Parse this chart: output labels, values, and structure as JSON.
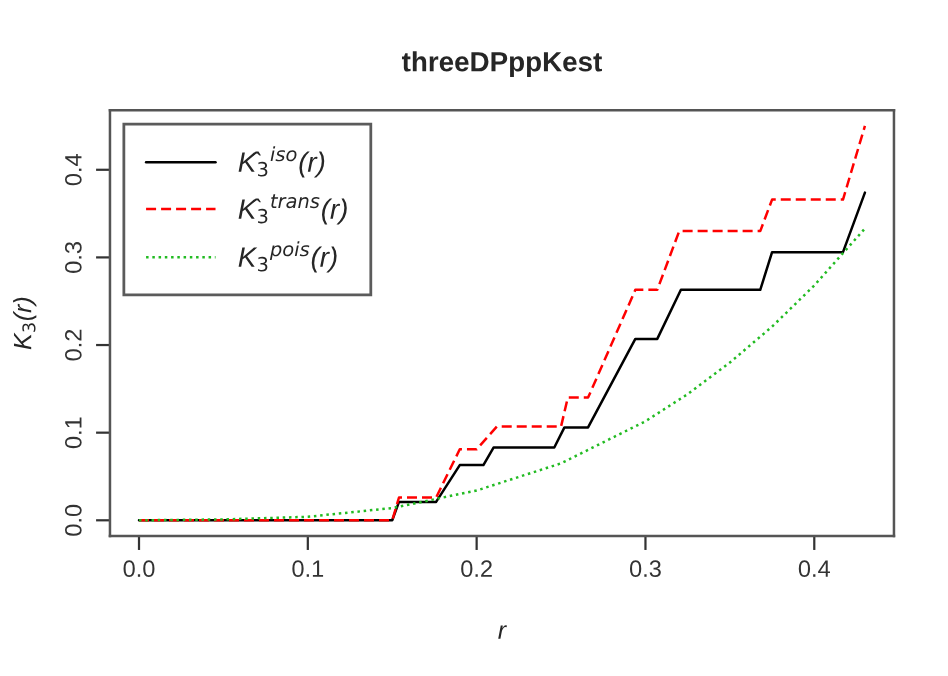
{
  "chart_data": {
    "type": "line",
    "title": "threeDPppKest",
    "xlabel": "r",
    "ylabel": "K$_{3}$(r)",
    "xlim": [
      -0.0172,
      0.4472
    ],
    "ylim": [
      -0.018,
      0.468
    ],
    "xticks": [
      {
        "value": 0,
        "label": "0.0"
      },
      0.1,
      0.2,
      0.3,
      0.4
    ],
    "yticks": [
      {
        "value": 0,
        "label": "0.0"
      },
      0.1,
      0.2,
      0.3,
      0.4
    ],
    "grid": false,
    "legend": "top left",
    "marker": "none",
    "series": [
      {
        "name": "K̂$_{3}$$^{iso}$(r)",
        "color": "#000000",
        "line_style": "solid",
        "x": [
          0,
          0.15,
          0.154,
          0.176,
          0.19,
          0.204,
          0.21,
          0.246,
          0.252,
          0.266,
          0.294,
          0.307,
          0.321,
          0.368,
          0.375,
          0.417,
          0.43
        ],
        "values": [
          0,
          0,
          0.021,
          0.021,
          0.063,
          0.063,
          0.083,
          0.083,
          0.106,
          0.106,
          0.207,
          0.207,
          0.263,
          0.263,
          0.306,
          0.306,
          0.374
        ]
      },
      {
        "name": "K̂$_{3}$$^{trans}$(r)",
        "color": "#ff0000",
        "line_style": "dashed",
        "x": [
          0,
          0.15,
          0.154,
          0.176,
          0.19,
          0.2,
          0.212,
          0.25,
          0.254,
          0.266,
          0.294,
          0.307,
          0.32,
          0.368,
          0.375,
          0.417,
          0.43
        ],
        "values": [
          0,
          0,
          0.026,
          0.026,
          0.081,
          0.081,
          0.107,
          0.107,
          0.14,
          0.14,
          0.263,
          0.263,
          0.33,
          0.33,
          0.366,
          0.366,
          0.45
        ]
      },
      {
        "name": "K$_{3}$$^{pois}$(r)",
        "color": "#22bb22",
        "line_style": "dotted",
        "x": [
          0,
          0.05,
          0.1,
          0.15,
          0.2,
          0.25,
          0.3,
          0.325,
          0.35,
          0.375,
          0.4,
          0.43
        ],
        "values": [
          0,
          0.001,
          0.004,
          0.014,
          0.034,
          0.065,
          0.113,
          0.144,
          0.18,
          0.221,
          0.268,
          0.333
        ]
      }
    ]
  }
}
